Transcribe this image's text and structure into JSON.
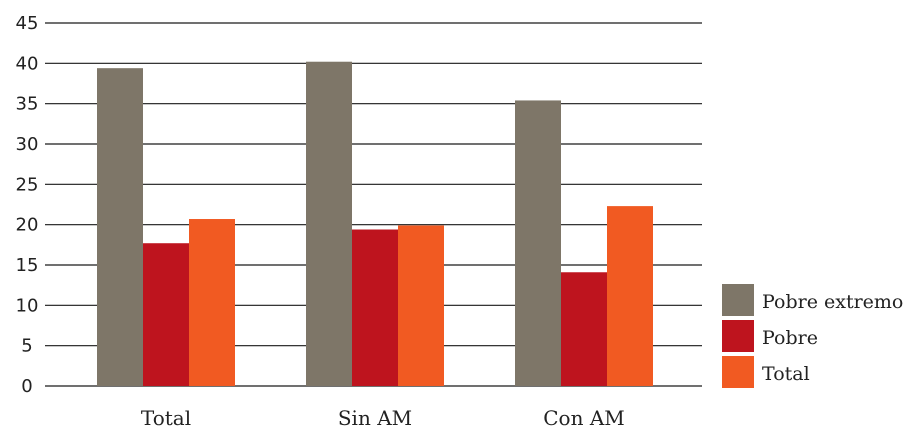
{
  "chart_data": {
    "type": "bar",
    "title": "",
    "xlabel": "",
    "ylabel": "",
    "categories": [
      "Total",
      "Sin AM",
      "Con AM"
    ],
    "series": [
      {
        "name": "Pobre extremo",
        "color": "#7e7668",
        "values": [
          39.4,
          40.2,
          35.4
        ]
      },
      {
        "name": "Pobre",
        "color": "#be141e",
        "values": [
          17.7,
          19.4,
          14.1
        ]
      },
      {
        "name": "Total",
        "color": "#f15a22",
        "values": [
          20.7,
          19.9,
          22.3
        ]
      }
    ],
    "ylim": [
      0,
      45
    ],
    "yticks": [
      0,
      5,
      10,
      15,
      20,
      25,
      30,
      35,
      40,
      45
    ],
    "grid": true,
    "legend_position": "bottom-right"
  }
}
